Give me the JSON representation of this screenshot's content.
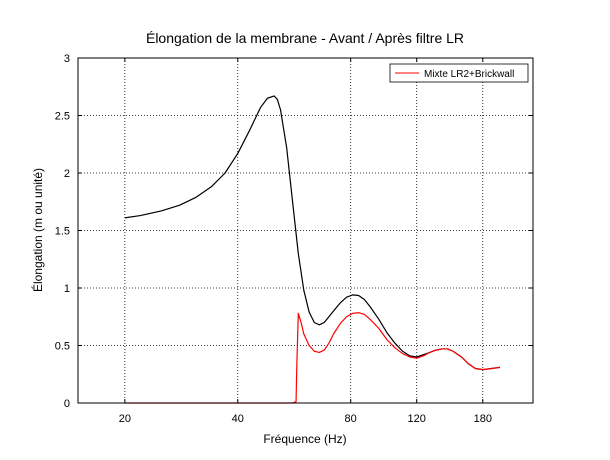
{
  "chart_data": {
    "type": "line",
    "title": "Élongation de la membrane - Avant / Après filtre LR",
    "xlabel": "Fréquence (Hz)",
    "ylabel": "Élongation (m ou unité)",
    "xscale": "log",
    "xlim": [
      15,
      245
    ],
    "ylim": [
      0,
      3
    ],
    "x_ticks": [
      20,
      40,
      80,
      120,
      180
    ],
    "x_tick_labels": [
      "20",
      "40",
      "80",
      "120",
      "180"
    ],
    "y_ticks": [
      0,
      0.5,
      1,
      1.5,
      2,
      2.5,
      3
    ],
    "y_tick_labels": [
      "0",
      "0.5",
      "1",
      "1.5",
      "2",
      "2.5",
      "3"
    ],
    "grid": true,
    "legend_position": "top-right",
    "series": [
      {
        "color": "#000000",
        "x": [
          20,
          22,
          25,
          28,
          31,
          34,
          37,
          40,
          43,
          46,
          48,
          50,
          51,
          52,
          54,
          56,
          58,
          60,
          62,
          64,
          66,
          68,
          70,
          72,
          75,
          78,
          81,
          84,
          87,
          90,
          95,
          100,
          105,
          110,
          115,
          120,
          125,
          130,
          135,
          140,
          145,
          150,
          158,
          165,
          172,
          180,
          190,
          200
        ],
        "y": [
          1.61,
          1.63,
          1.67,
          1.72,
          1.79,
          1.88,
          2.0,
          2.17,
          2.37,
          2.57,
          2.65,
          2.67,
          2.64,
          2.55,
          2.22,
          1.75,
          1.3,
          0.98,
          0.79,
          0.7,
          0.68,
          0.7,
          0.75,
          0.8,
          0.87,
          0.92,
          0.94,
          0.935,
          0.9,
          0.84,
          0.73,
          0.61,
          0.52,
          0.45,
          0.41,
          0.4,
          0.42,
          0.44,
          0.46,
          0.47,
          0.47,
          0.45,
          0.4,
          0.34,
          0.3,
          0.29,
          0.3,
          0.31
        ]
      },
      {
        "name": "Mixte LR2+Brickwall",
        "color": "#ff0000",
        "x": [
          20,
          30,
          40,
          50,
          56,
          57.2,
          57.5,
          58,
          59,
          60,
          62,
          64,
          66,
          68,
          70,
          72,
          75,
          78,
          81,
          84,
          87,
          90,
          95,
          100,
          105,
          110,
          115,
          120,
          125,
          130,
          135,
          140,
          145,
          150,
          158,
          165,
          172,
          180,
          190,
          200
        ],
        "y": [
          0,
          0,
          0,
          0,
          0,
          0.01,
          0.35,
          0.78,
          0.7,
          0.6,
          0.5,
          0.45,
          0.44,
          0.46,
          0.52,
          0.6,
          0.69,
          0.75,
          0.78,
          0.785,
          0.77,
          0.73,
          0.65,
          0.55,
          0.48,
          0.43,
          0.4,
          0.39,
          0.41,
          0.44,
          0.46,
          0.47,
          0.47,
          0.45,
          0.4,
          0.34,
          0.3,
          0.29,
          0.3,
          0.31
        ]
      }
    ]
  }
}
